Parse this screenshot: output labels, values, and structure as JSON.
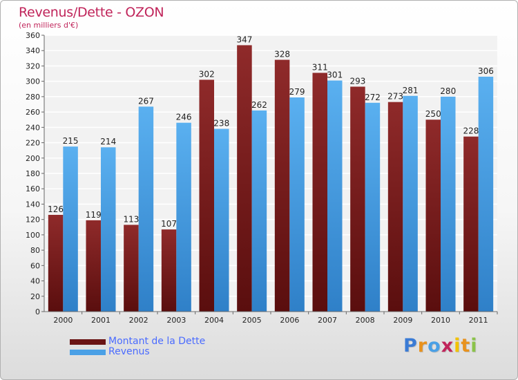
{
  "title": "Revenus/Dette - OZON",
  "subtitle": "(en milliers d'€)",
  "colors": {
    "title": "#c0245a",
    "dette": "#7a1c1c",
    "revenus": "#4aa0e6",
    "legend_text": "#4a6bff"
  },
  "chart_data": {
    "type": "bar",
    "categories": [
      "2000",
      "2001",
      "2002",
      "2003",
      "2004",
      "2005",
      "2006",
      "2007",
      "2008",
      "2009",
      "2010",
      "2011"
    ],
    "series": [
      {
        "name": "Montant de la Dette",
        "values": [
          126,
          119,
          113,
          107,
          302,
          347,
          328,
          311,
          293,
          273,
          250,
          228
        ]
      },
      {
        "name": "Revenus",
        "values": [
          215,
          214,
          267,
          246,
          238,
          262,
          279,
          301,
          272,
          281,
          280,
          306
        ]
      }
    ],
    "ylim": [
      0,
      360
    ],
    "ytick_step": 20,
    "grid": true,
    "legend": "bottom-left"
  },
  "legend": {
    "items": [
      {
        "label": "Montant de la Dette"
      },
      {
        "label": "Revenus"
      }
    ]
  },
  "logo": {
    "letters": [
      "P",
      "r",
      "o",
      "x",
      "i",
      "t",
      "i"
    ],
    "colors": [
      "#3a7bd5",
      "#e8921e",
      "#4aa0e6",
      "#c0245a",
      "#f2c200",
      "#e8921e",
      "#8bc34a"
    ]
  }
}
